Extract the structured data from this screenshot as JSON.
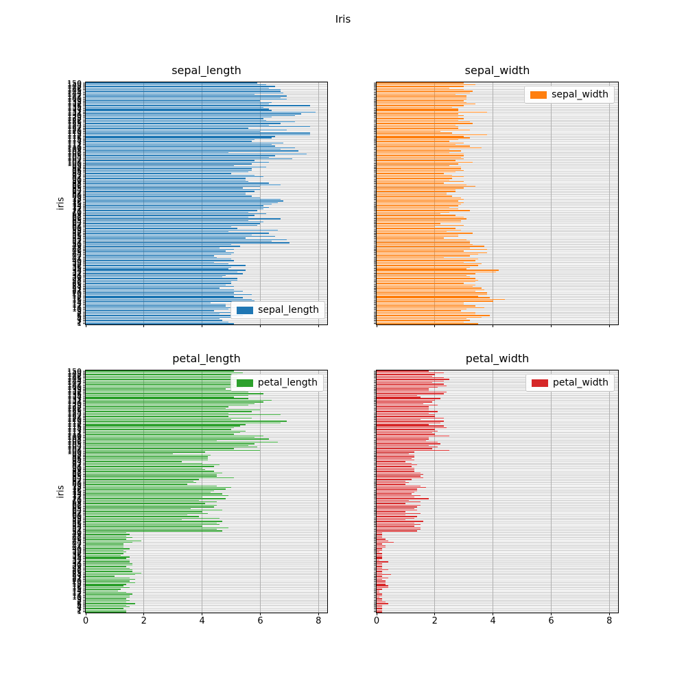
{
  "figure": {
    "suptitle": "Iris",
    "background_color": "#ffffff",
    "grid_color": "#c4c4c4",
    "spine_color": "#000000"
  },
  "chart_data": {
    "type": "bar",
    "orientation": "horizontal",
    "suptitle": "Iris",
    "ylabel": "iris",
    "xlim": [
      0,
      8.3
    ],
    "xticks": [
      0,
      2,
      4,
      6,
      8
    ],
    "n_rows": 150,
    "index_start": 1,
    "grid": true,
    "layout": "2x2 subplots; left column shows y label and y tick labels; bottom row shows x tick labels",
    "subplots": [
      {
        "title": "sepal_length",
        "legend_label": "sepal_length",
        "legend_position": "bottom-right",
        "color": "#1f77b4",
        "values": [
          5.1,
          4.9,
          4.7,
          4.6,
          5.0,
          5.4,
          4.6,
          5.0,
          4.4,
          4.9,
          5.4,
          4.8,
          4.8,
          4.3,
          5.8,
          5.7,
          5.4,
          5.1,
          5.7,
          5.1,
          5.4,
          5.1,
          4.6,
          5.1,
          4.8,
          5.0,
          5.0,
          5.2,
          5.2,
          4.7,
          4.8,
          5.4,
          5.2,
          5.5,
          4.9,
          5.0,
          5.5,
          4.9,
          4.4,
          5.1,
          5.0,
          4.5,
          4.4,
          5.0,
          5.1,
          4.8,
          5.1,
          4.6,
          5.3,
          5.0,
          7.0,
          6.4,
          6.9,
          5.5,
          6.5,
          5.7,
          6.3,
          4.9,
          6.6,
          5.2,
          5.0,
          5.9,
          6.0,
          6.1,
          5.6,
          6.7,
          5.6,
          5.8,
          6.2,
          5.6,
          5.9,
          6.1,
          6.3,
          6.1,
          6.4,
          6.6,
          6.8,
          6.7,
          6.0,
          5.7,
          5.5,
          5.5,
          5.8,
          6.0,
          5.4,
          6.0,
          6.7,
          6.3,
          5.6,
          5.5,
          5.5,
          6.1,
          5.8,
          5.0,
          5.6,
          5.7,
          5.7,
          6.2,
          5.1,
          5.7,
          6.3,
          5.8,
          7.1,
          6.3,
          6.5,
          7.6,
          4.9,
          7.3,
          6.7,
          7.2,
          6.5,
          6.4,
          6.8,
          5.7,
          5.8,
          6.4,
          6.5,
          7.7,
          7.7,
          6.0,
          6.9,
          5.6,
          7.7,
          6.3,
          6.7,
          7.2,
          6.2,
          6.1,
          6.4,
          7.2,
          7.4,
          7.9,
          6.4,
          6.3,
          6.1,
          7.7,
          6.3,
          6.4,
          6.0,
          6.9,
          6.7,
          6.9,
          5.8,
          6.8,
          6.7,
          6.7,
          6.3,
          6.5,
          6.2,
          5.9
        ]
      },
      {
        "title": "sepal_width",
        "legend_label": "sepal_width",
        "legend_position": "top-right",
        "color": "#ff7f0e",
        "values": [
          3.5,
          3.0,
          3.2,
          3.1,
          3.6,
          3.9,
          3.4,
          3.4,
          2.9,
          3.1,
          3.7,
          3.4,
          3.0,
          3.0,
          4.0,
          4.4,
          3.9,
          3.5,
          3.8,
          3.8,
          3.4,
          3.7,
          3.6,
          3.3,
          3.4,
          3.0,
          3.4,
          3.5,
          3.4,
          3.2,
          3.1,
          3.4,
          4.1,
          4.2,
          3.1,
          3.2,
          3.5,
          3.6,
          3.0,
          3.4,
          3.5,
          2.3,
          3.2,
          3.5,
          3.8,
          3.0,
          3.8,
          3.2,
          3.7,
          3.3,
          3.2,
          3.2,
          3.1,
          2.3,
          2.8,
          2.8,
          3.3,
          2.4,
          2.9,
          2.7,
          2.0,
          3.0,
          2.2,
          2.9,
          2.9,
          3.1,
          3.0,
          2.7,
          2.2,
          2.5,
          3.2,
          2.8,
          2.5,
          2.8,
          2.9,
          3.0,
          2.8,
          3.0,
          2.9,
          2.6,
          2.4,
          2.4,
          2.7,
          2.7,
          3.0,
          3.4,
          3.1,
          2.3,
          3.0,
          2.5,
          2.6,
          3.0,
          2.6,
          2.3,
          2.7,
          3.0,
          2.9,
          2.9,
          2.5,
          2.8,
          3.3,
          2.7,
          3.0,
          2.9,
          3.0,
          3.0,
          2.5,
          2.9,
          2.5,
          3.6,
          3.2,
          2.7,
          3.0,
          2.5,
          2.8,
          3.2,
          3.0,
          3.8,
          2.6,
          2.2,
          3.2,
          2.8,
          2.8,
          2.7,
          3.3,
          3.2,
          2.8,
          3.0,
          2.8,
          3.0,
          2.8,
          3.8,
          2.8,
          2.8,
          2.6,
          3.0,
          3.4,
          3.1,
          3.0,
          3.1,
          3.1,
          3.1,
          2.7,
          3.2,
          3.3,
          3.0,
          2.5,
          3.0,
          3.4,
          3.0
        ]
      },
      {
        "title": "petal_length",
        "legend_label": "petal_length",
        "legend_position": "top-right",
        "color": "#2ca02c",
        "values": [
          1.4,
          1.4,
          1.3,
          1.5,
          1.4,
          1.7,
          1.4,
          1.5,
          1.4,
          1.5,
          1.5,
          1.6,
          1.4,
          1.1,
          1.2,
          1.5,
          1.3,
          1.4,
          1.7,
          1.5,
          1.7,
          1.5,
          1.0,
          1.7,
          1.9,
          1.6,
          1.6,
          1.5,
          1.4,
          1.6,
          1.6,
          1.5,
          1.5,
          1.4,
          1.5,
          1.2,
          1.3,
          1.4,
          1.3,
          1.5,
          1.3,
          1.3,
          1.3,
          1.6,
          1.9,
          1.4,
          1.6,
          1.4,
          1.5,
          1.4,
          4.7,
          4.5,
          4.9,
          4.0,
          4.6,
          4.5,
          4.7,
          3.3,
          4.6,
          3.9,
          3.5,
          4.2,
          4.0,
          4.7,
          3.6,
          4.4,
          4.5,
          4.1,
          4.5,
          3.9,
          4.8,
          4.0,
          4.9,
          4.7,
          4.3,
          4.4,
          4.8,
          5.0,
          4.5,
          3.5,
          3.8,
          3.7,
          3.9,
          5.1,
          4.5,
          4.5,
          4.7,
          4.4,
          4.1,
          4.0,
          4.4,
          4.6,
          4.0,
          3.3,
          4.2,
          4.2,
          4.2,
          4.3,
          3.0,
          4.1,
          6.0,
          5.1,
          5.9,
          5.6,
          5.8,
          6.6,
          4.5,
          6.3,
          5.8,
          6.1,
          5.1,
          5.3,
          5.5,
          5.0,
          5.1,
          5.3,
          5.5,
          6.7,
          6.9,
          5.0,
          5.7,
          4.9,
          6.7,
          4.9,
          5.7,
          6.0,
          4.8,
          4.9,
          5.6,
          5.8,
          6.1,
          6.4,
          5.6,
          5.1,
          5.6,
          6.1,
          5.6,
          5.5,
          4.8,
          5.4,
          5.6,
          5.1,
          5.1,
          5.9,
          5.7,
          5.2,
          5.0,
          5.2,
          5.4,
          5.1
        ]
      },
      {
        "title": "petal_width",
        "legend_label": "petal_width",
        "legend_position": "top-right",
        "color": "#d62728",
        "values": [
          0.2,
          0.2,
          0.2,
          0.2,
          0.2,
          0.4,
          0.3,
          0.2,
          0.2,
          0.1,
          0.2,
          0.2,
          0.1,
          0.1,
          0.2,
          0.4,
          0.4,
          0.3,
          0.3,
          0.3,
          0.2,
          0.4,
          0.2,
          0.5,
          0.2,
          0.2,
          0.4,
          0.2,
          0.2,
          0.2,
          0.2,
          0.4,
          0.1,
          0.2,
          0.2,
          0.2,
          0.2,
          0.1,
          0.2,
          0.2,
          0.3,
          0.3,
          0.2,
          0.6,
          0.4,
          0.3,
          0.2,
          0.2,
          0.2,
          0.2,
          1.4,
          1.5,
          1.5,
          1.3,
          1.5,
          1.3,
          1.6,
          1.0,
          1.3,
          1.4,
          1.0,
          1.5,
          1.0,
          1.4,
          1.3,
          1.4,
          1.5,
          1.0,
          1.5,
          1.1,
          1.8,
          1.3,
          1.5,
          1.2,
          1.3,
          1.4,
          1.4,
          1.7,
          1.5,
          1.0,
          1.1,
          1.0,
          1.2,
          1.6,
          1.5,
          1.6,
          1.5,
          1.3,
          1.3,
          1.3,
          1.2,
          1.4,
          1.2,
          1.0,
          1.3,
          1.2,
          1.3,
          1.3,
          1.1,
          1.3,
          2.5,
          1.9,
          2.1,
          1.8,
          2.2,
          2.1,
          1.7,
          1.8,
          1.8,
          2.5,
          2.0,
          1.9,
          2.1,
          2.0,
          2.4,
          2.3,
          1.8,
          2.2,
          2.3,
          1.5,
          2.3,
          2.0,
          2.0,
          1.8,
          2.1,
          1.8,
          1.8,
          1.8,
          2.1,
          1.6,
          1.9,
          2.0,
          2.2,
          1.5,
          1.4,
          2.3,
          2.4,
          1.8,
          1.8,
          2.1,
          2.4,
          2.3,
          1.9,
          2.3,
          2.5,
          2.3,
          1.9,
          2.0,
          2.3,
          1.8
        ]
      }
    ]
  }
}
